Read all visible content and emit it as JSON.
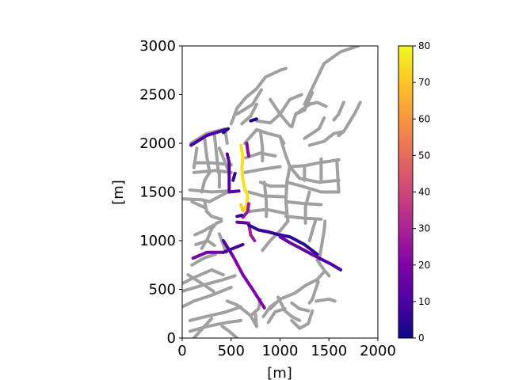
{
  "chart_data": {
    "type": "network-map",
    "xlabel": "[m]",
    "ylabel": "[m]",
    "xlim": [
      0,
      2000
    ],
    "ylim": [
      0,
      3000
    ],
    "xticks": [
      0,
      500,
      1000,
      1500,
      2000
    ],
    "yticks": [
      0,
      500,
      1000,
      1500,
      2000,
      2500,
      3000
    ],
    "xtick_labels": [
      "0",
      "500",
      "1000",
      "1500",
      "2000"
    ],
    "ytick_labels": [
      "0",
      "500",
      "1000",
      "1500",
      "2000",
      "2500",
      "3000"
    ],
    "colorbar": {
      "colormap": "plasma",
      "range": [
        0,
        80
      ],
      "ticks": [
        0,
        10,
        20,
        30,
        40,
        50,
        60,
        70,
        80
      ],
      "tick_labels": [
        "0",
        "10",
        "20",
        "30",
        "40",
        "50",
        "60",
        "70",
        "80"
      ]
    },
    "base_color": "#a0a0a0",
    "base_network": [
      [
        [
          90,
          2000
        ],
        [
          250,
          2100
        ],
        [
          450,
          2150
        ]
      ],
      [
        [
          120,
          1750
        ],
        [
          150,
          1950
        ]
      ],
      [
        [
          230,
          2040
        ],
        [
          250,
          1870
        ],
        [
          280,
          1700
        ]
      ],
      [
        [
          330,
          2080
        ],
        [
          350,
          1900
        ],
        [
          370,
          1700
        ]
      ],
      [
        [
          380,
          1950
        ],
        [
          420,
          1850
        ],
        [
          480,
          1700
        ]
      ],
      [
        [
          440,
          2130
        ],
        [
          460,
          2000
        ]
      ],
      [
        [
          150,
          1800
        ],
        [
          300,
          1800
        ],
        [
          500,
          1780
        ]
      ],
      [
        [
          120,
          1700
        ],
        [
          350,
          1720
        ],
        [
          500,
          1700
        ]
      ],
      [
        [
          200,
          1500
        ],
        [
          230,
          1620
        ],
        [
          280,
          1700
        ]
      ],
      [
        [
          380,
          1700
        ],
        [
          380,
          1550
        ]
      ],
      [
        [
          80,
          1520
        ],
        [
          300,
          1500
        ],
        [
          470,
          1510
        ]
      ],
      [
        [
          0,
          1430
        ],
        [
          200,
          1420
        ],
        [
          280,
          1400
        ],
        [
          370,
          1450
        ],
        [
          470,
          1500
        ]
      ],
      [
        [
          230,
          1400
        ],
        [
          250,
          1300
        ],
        [
          300,
          1250
        ],
        [
          400,
          1220
        ]
      ],
      [
        [
          230,
          1340
        ],
        [
          100,
          1400
        ]
      ],
      [
        [
          500,
          2200
        ],
        [
          560,
          2360
        ],
        [
          650,
          2470
        ],
        [
          760,
          2560
        ],
        [
          850,
          2680
        ],
        [
          1000,
          2750
        ],
        [
          1060,
          2770
        ]
      ],
      [
        [
          560,
          2300
        ],
        [
          720,
          2400
        ],
        [
          810,
          2550
        ]
      ],
      [
        [
          610,
          2200
        ],
        [
          700,
          2280
        ],
        [
          760,
          2400
        ]
      ],
      [
        [
          760,
          2230
        ],
        [
          900,
          2210
        ],
        [
          1000,
          2300
        ]
      ],
      [
        [
          900,
          2450
        ],
        [
          1000,
          2300
        ],
        [
          1100,
          2180
        ]
      ],
      [
        [
          1000,
          2300
        ],
        [
          1100,
          2450
        ],
        [
          1220,
          2500
        ]
      ],
      [
        [
          1160,
          2300
        ],
        [
          1300,
          2400
        ],
        [
          1380,
          2420
        ],
        [
          1470,
          2380
        ]
      ],
      [
        [
          1330,
          2520
        ],
        [
          1250,
          2340
        ],
        [
          1160,
          2300
        ],
        [
          1120,
          2170
        ]
      ],
      [
        [
          1450,
          2260
        ],
        [
          1400,
          2150
        ],
        [
          1250,
          2050
        ]
      ],
      [
        [
          1650,
          2120
        ],
        [
          1550,
          2100
        ],
        [
          1450,
          2020
        ],
        [
          1300,
          1980
        ]
      ],
      [
        [
          1250,
          2400
        ],
        [
          1450,
          2820
        ],
        [
          1620,
          2940
        ],
        [
          1800,
          3000
        ]
      ],
      [
        [
          1820,
          2420
        ],
        [
          1760,
          2300
        ],
        [
          1650,
          2120
        ],
        [
          1600,
          2080
        ]
      ],
      [
        [
          1650,
          2420
        ],
        [
          1600,
          2300
        ],
        [
          1550,
          2240
        ]
      ],
      [
        [
          640,
          2000
        ],
        [
          760,
          2140
        ],
        [
          880,
          2100
        ],
        [
          1000,
          2070
        ],
        [
          1040,
          2000
        ]
      ],
      [
        [
          650,
          1850
        ],
        [
          800,
          1900
        ],
        [
          950,
          1870
        ]
      ],
      [
        [
          640,
          1700
        ],
        [
          800,
          1730
        ],
        [
          1000,
          1760
        ]
      ],
      [
        [
          1000,
          2070
        ],
        [
          1050,
          1900
        ],
        [
          1100,
          1760
        ]
      ],
      [
        [
          800,
          2130
        ],
        [
          820,
          1950
        ],
        [
          820,
          1820
        ]
      ],
      [
        [
          1100,
          1760
        ],
        [
          1250,
          1770
        ],
        [
          1400,
          1800
        ],
        [
          1600,
          1830
        ]
      ],
      [
        [
          1100,
          1760
        ],
        [
          1200,
          1640
        ],
        [
          1400,
          1600
        ],
        [
          1600,
          1620
        ]
      ],
      [
        [
          1250,
          1770
        ],
        [
          1250,
          1620
        ]
      ],
      [
        [
          1420,
          1840
        ],
        [
          1420,
          1620
        ]
      ],
      [
        [
          1580,
          1830
        ],
        [
          1600,
          1500
        ]
      ],
      [
        [
          1100,
          1760
        ],
        [
          1070,
          1600
        ],
        [
          1060,
          1400
        ],
        [
          1080,
          1200
        ]
      ],
      [
        [
          800,
          1600
        ],
        [
          900,
          1560
        ],
        [
          1070,
          1560
        ]
      ],
      [
        [
          680,
          1500
        ],
        [
          820,
          1460
        ],
        [
          1060,
          1450
        ]
      ],
      [
        [
          680,
          1300
        ],
        [
          860,
          1320
        ],
        [
          1060,
          1280
        ]
      ],
      [
        [
          1060,
          1400
        ],
        [
          1260,
          1380
        ],
        [
          1420,
          1370
        ]
      ],
      [
        [
          1060,
          1250
        ],
        [
          1260,
          1230
        ],
        [
          1420,
          1220
        ]
      ],
      [
        [
          1070,
          1600
        ],
        [
          1220,
          1560
        ],
        [
          1420,
          1500
        ],
        [
          1600,
          1500
        ]
      ],
      [
        [
          1300,
          1500
        ],
        [
          1260,
          1350
        ],
        [
          1260,
          1180
        ]
      ],
      [
        [
          840,
          1600
        ],
        [
          860,
          1400
        ],
        [
          860,
          1250
        ]
      ],
      [
        [
          1080,
          1200
        ],
        [
          1000,
          1100
        ],
        [
          900,
          1000
        ],
        [
          820,
          900
        ]
      ],
      [
        [
          1300,
          1000
        ],
        [
          1360,
          1200
        ]
      ],
      [
        [
          1400,
          800
        ],
        [
          1450,
          1100
        ],
        [
          1460,
          1200
        ]
      ],
      [
        [
          60,
          650
        ],
        [
          200,
          560
        ],
        [
          320,
          480
        ]
      ],
      [
        [
          0,
          560
        ],
        [
          120,
          620
        ],
        [
          300,
          700
        ],
        [
          420,
          650
        ]
      ],
      [
        [
          100,
          750
        ],
        [
          220,
          820
        ],
        [
          340,
          860
        ]
      ],
      [
        [
          140,
          960
        ],
        [
          260,
          1000
        ],
        [
          330,
          950
        ]
      ],
      [
        [
          130,
          1060
        ],
        [
          220,
          1100
        ],
        [
          320,
          1160
        ]
      ],
      [
        [
          200,
          920
        ],
        [
          260,
          1020
        ],
        [
          300,
          1120
        ],
        [
          350,
          1180
        ],
        [
          400,
          1200
        ]
      ],
      [
        [
          380,
          1070
        ],
        [
          420,
          960
        ],
        [
          450,
          880
        ]
      ],
      [
        [
          0,
          320
        ],
        [
          120,
          380
        ],
        [
          300,
          440
        ],
        [
          500,
          520
        ]
      ],
      [
        [
          80,
          180
        ],
        [
          240,
          220
        ],
        [
          420,
          260
        ],
        [
          600,
          320
        ]
      ],
      [
        [
          80,
          70
        ],
        [
          260,
          120
        ],
        [
          460,
          160
        ],
        [
          600,
          180
        ]
      ],
      [
        [
          0,
          480
        ],
        [
          200,
          540
        ],
        [
          420,
          600
        ],
        [
          540,
          640
        ]
      ],
      [
        [
          120,
          0
        ],
        [
          210,
          100
        ],
        [
          300,
          200
        ]
      ],
      [
        [
          410,
          120
        ],
        [
          480,
          70
        ],
        [
          560,
          0
        ]
      ],
      [
        [
          460,
          380
        ],
        [
          560,
          340
        ]
      ],
      [
        [
          560,
          340
        ],
        [
          700,
          230
        ],
        [
          760,
          120
        ]
      ],
      [
        [
          700,
          230
        ],
        [
          780,
          300
        ],
        [
          800,
          400
        ]
      ],
      [
        [
          760,
          120
        ],
        [
          750,
          240
        ]
      ],
      [
        [
          830,
          220
        ],
        [
          900,
          320
        ],
        [
          980,
          380
        ]
      ],
      [
        [
          900,
          300
        ],
        [
          1000,
          400
        ],
        [
          1150,
          460
        ],
        [
          1260,
          540
        ]
      ],
      [
        [
          880,
          160
        ],
        [
          950,
          270
        ],
        [
          1050,
          300
        ]
      ],
      [
        [
          980,
          420
        ],
        [
          1050,
          280
        ],
        [
          1120,
          220
        ],
        [
          1200,
          180
        ]
      ],
      [
        [
          1120,
          360
        ],
        [
          1200,
          300
        ],
        [
          1290,
          280
        ]
      ],
      [
        [
          1120,
          180
        ],
        [
          1200,
          100
        ],
        [
          1290,
          150
        ],
        [
          1330,
          280
        ]
      ],
      [
        [
          1260,
          540
        ],
        [
          1380,
          600
        ],
        [
          1450,
          680
        ]
      ],
      [
        [
          1300,
          360
        ],
        [
          1330,
          400
        ],
        [
          1390,
          580
        ]
      ],
      [
        [
          1370,
          380
        ],
        [
          1500,
          400
        ],
        [
          1560,
          380
        ]
      ],
      [
        [
          1380,
          800
        ],
        [
          1450,
          700
        ],
        [
          1500,
          640
        ]
      ]
    ],
    "flow_segments": [
      {
        "value": 10,
        "points": [
          [
            90,
            1980
          ],
          [
            250,
            2080
          ],
          [
            440,
            2140
          ]
        ]
      },
      {
        "value": 12,
        "points": [
          [
            460,
            1890
          ],
          [
            480,
            1800
          ],
          [
            480,
            1500
          ],
          [
            580,
            1510
          ]
        ]
      },
      {
        "value": 7,
        "points": [
          [
            540,
            1690
          ],
          [
            520,
            1620
          ]
        ]
      },
      {
        "value": 75,
        "points": [
          [
            600,
            1980
          ],
          [
            620,
            1860
          ],
          [
            610,
            1750
          ],
          [
            620,
            1620
          ],
          [
            640,
            1530
          ],
          [
            670,
            1460
          ],
          [
            660,
            1380
          ],
          [
            640,
            1320
          ]
        ]
      },
      {
        "value": 72,
        "points": [
          [
            600,
            1370
          ],
          [
            620,
            1310
          ]
        ]
      },
      {
        "value": 22,
        "points": [
          [
            660,
            2000
          ],
          [
            670,
            1920
          ],
          [
            680,
            1870
          ]
        ]
      },
      {
        "value": 26,
        "points": [
          [
            680,
            1380
          ],
          [
            670,
            1300
          ],
          [
            620,
            1240
          ]
        ]
      },
      {
        "value": 14,
        "points": [
          [
            560,
            1190
          ],
          [
            680,
            1180
          ]
        ]
      },
      {
        "value": 28,
        "points": [
          [
            680,
            1180
          ],
          [
            700,
            1060
          ],
          [
            740,
            1000
          ]
        ]
      },
      {
        "value": 8,
        "points": [
          [
            610,
            1260
          ],
          [
            560,
            1250
          ]
        ]
      },
      {
        "value": 6,
        "points": [
          [
            680,
            1160
          ],
          [
            780,
            1110
          ],
          [
            880,
            1090
          ],
          [
            990,
            1060
          ]
        ]
      },
      {
        "value": 5,
        "points": [
          [
            990,
            1060
          ],
          [
            1100,
            1040
          ],
          [
            1250,
            960
          ],
          [
            1380,
            860
          ]
        ]
      },
      {
        "value": 15,
        "points": [
          [
            1000,
            1040
          ],
          [
            1100,
            980
          ],
          [
            1250,
            900
          ],
          [
            1400,
            820
          ]
        ]
      },
      {
        "value": 10,
        "points": [
          [
            1400,
            820
          ],
          [
            1520,
            760
          ],
          [
            1620,
            700
          ]
        ]
      },
      {
        "value": 18,
        "points": [
          [
            110,
            820
          ],
          [
            250,
            880
          ],
          [
            420,
            880
          ]
        ]
      },
      {
        "value": 9,
        "points": [
          [
            420,
            880
          ],
          [
            520,
            920
          ],
          [
            620,
            960
          ]
        ]
      },
      {
        "value": 11,
        "points": [
          [
            420,
            1000
          ],
          [
            470,
            920
          ],
          [
            520,
            840
          ]
        ]
      },
      {
        "value": 20,
        "points": [
          [
            520,
            840
          ],
          [
            620,
            650
          ],
          [
            720,
            500
          ],
          [
            840,
            310
          ]
        ]
      },
      {
        "value": 4,
        "points": [
          [
            700,
            2230
          ],
          [
            760,
            2250
          ]
        ]
      },
      {
        "value": 3,
        "points": [
          [
            420,
            2110
          ],
          [
            470,
            2150
          ]
        ]
      }
    ]
  }
}
